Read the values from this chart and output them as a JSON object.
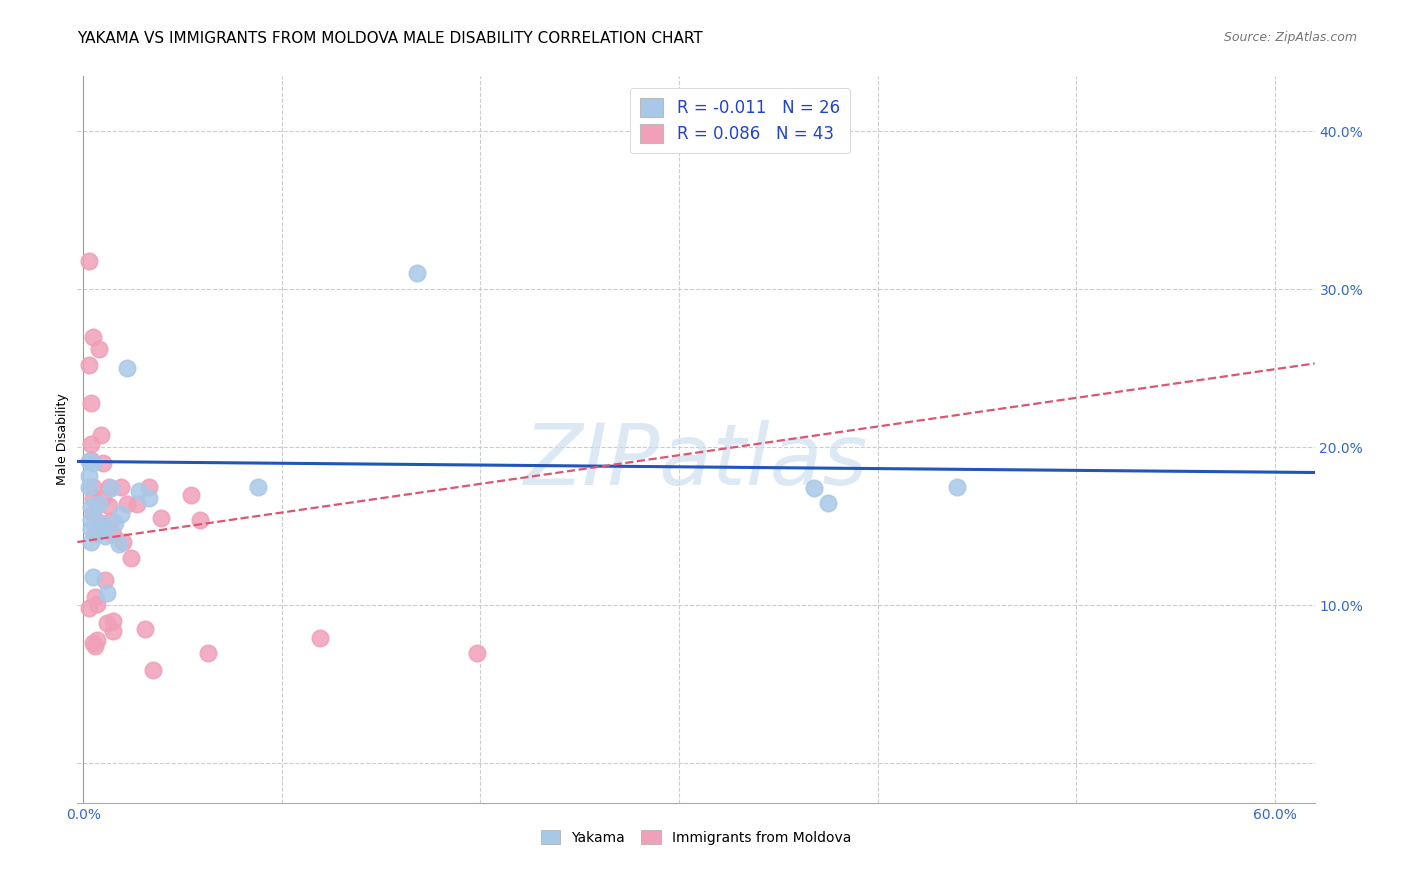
{
  "title": "YAKAMA VS IMMIGRANTS FROM MOLDOVA MALE DISABILITY CORRELATION CHART",
  "source": "Source: ZipAtlas.com",
  "ylabel": "Male Disability",
  "xlim": [
    -0.003,
    0.62
  ],
  "ylim": [
    -0.025,
    0.435
  ],
  "xticks": [
    0.0,
    0.1,
    0.2,
    0.3,
    0.4,
    0.5,
    0.6
  ],
  "xticklabels": [
    "0.0%",
    "",
    "",
    "",
    "",
    "",
    "60.0%"
  ],
  "yticks": [
    0.0,
    0.1,
    0.2,
    0.3,
    0.4
  ],
  "yticklabels": [
    "",
    "10.0%",
    "20.0%",
    "30.0%",
    "40.0%"
  ],
  "grid_color": "#cccccc",
  "background_color": "#ffffff",
  "watermark": "ZIPatlas",
  "legend_r1_val": "-0.011",
  "legend_n1_val": "26",
  "legend_r2_val": "0.086",
  "legend_n2_val": "43",
  "yakama_color": "#a8c8e8",
  "moldova_color": "#f0a0b8",
  "trendline_yakama_color": "#2255bb",
  "trendline_moldova_color": "#dd5570",
  "yakama_label": "Yakama",
  "moldova_label": "Immigrants from Moldova",
  "yakama_x": [
    0.003,
    0.003,
    0.003,
    0.004,
    0.004,
    0.004,
    0.004,
    0.005,
    0.005,
    0.008,
    0.009,
    0.01,
    0.011,
    0.012,
    0.014,
    0.016,
    0.018,
    0.019,
    0.022,
    0.028,
    0.033,
    0.088,
    0.168,
    0.368,
    0.375,
    0.44
  ],
  "yakama_y": [
    0.191,
    0.182,
    0.175,
    0.162,
    0.154,
    0.148,
    0.14,
    0.19,
    0.118,
    0.164,
    0.152,
    0.148,
    0.144,
    0.108,
    0.174,
    0.152,
    0.139,
    0.158,
    0.25,
    0.172,
    0.168,
    0.175,
    0.31,
    0.174,
    0.165,
    0.175
  ],
  "moldova_x": [
    0.003,
    0.003,
    0.003,
    0.004,
    0.004,
    0.004,
    0.005,
    0.005,
    0.005,
    0.005,
    0.005,
    0.006,
    0.006,
    0.006,
    0.007,
    0.007,
    0.008,
    0.009,
    0.01,
    0.01,
    0.01,
    0.011,
    0.012,
    0.013,
    0.013,
    0.014,
    0.015,
    0.015,
    0.015,
    0.019,
    0.02,
    0.022,
    0.024,
    0.027,
    0.031,
    0.033,
    0.035,
    0.039,
    0.054,
    0.059,
    0.063,
    0.119,
    0.198
  ],
  "moldova_y": [
    0.318,
    0.098,
    0.252,
    0.228,
    0.202,
    0.192,
    0.27,
    0.175,
    0.168,
    0.158,
    0.076,
    0.145,
    0.105,
    0.074,
    0.101,
    0.078,
    0.262,
    0.208,
    0.19,
    0.168,
    0.15,
    0.116,
    0.089,
    0.175,
    0.163,
    0.153,
    0.145,
    0.09,
    0.084,
    0.175,
    0.14,
    0.164,
    0.13,
    0.164,
    0.085,
    0.175,
    0.059,
    0.155,
    0.17,
    0.154,
    0.07,
    0.079,
    0.07
  ],
  "yakama_trend_x": [
    -0.003,
    0.62
  ],
  "yakama_trend_y": [
    0.191,
    0.184
  ],
  "moldova_trend_x": [
    -0.003,
    0.62
  ],
  "moldova_trend_y": [
    0.14,
    0.253
  ],
  "title_fontsize": 11,
  "axis_label_fontsize": 9,
  "tick_fontsize": 10,
  "legend_fontsize": 12,
  "source_fontsize": 9,
  "dot_size": 140,
  "dot_linewidth": 1.2
}
